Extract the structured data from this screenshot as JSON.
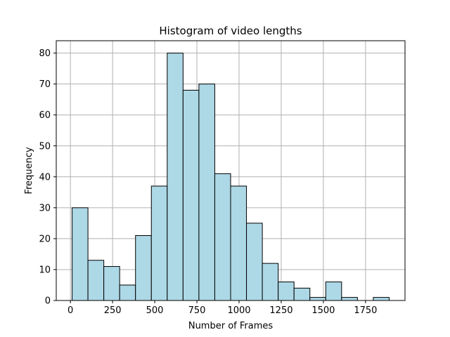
{
  "chart_data": {
    "type": "bar",
    "title": "Histogram of video lengths",
    "xlabel": "Number of Frames",
    "ylabel": "Frequency",
    "bins": [
      {
        "start": 10,
        "end": 104,
        "count": 30
      },
      {
        "start": 104,
        "end": 198,
        "count": 13
      },
      {
        "start": 198,
        "end": 292,
        "count": 11
      },
      {
        "start": 292,
        "end": 386,
        "count": 5
      },
      {
        "start": 386,
        "end": 480,
        "count": 21
      },
      {
        "start": 480,
        "end": 574,
        "count": 37
      },
      {
        "start": 574,
        "end": 668,
        "count": 80
      },
      {
        "start": 668,
        "end": 762,
        "count": 68
      },
      {
        "start": 762,
        "end": 856,
        "count": 70
      },
      {
        "start": 856,
        "end": 950,
        "count": 41
      },
      {
        "start": 950,
        "end": 1044,
        "count": 37
      },
      {
        "start": 1044,
        "end": 1138,
        "count": 25
      },
      {
        "start": 1138,
        "end": 1232,
        "count": 12
      },
      {
        "start": 1232,
        "end": 1326,
        "count": 6
      },
      {
        "start": 1326,
        "end": 1420,
        "count": 4
      },
      {
        "start": 1420,
        "end": 1514,
        "count": 1
      },
      {
        "start": 1514,
        "end": 1608,
        "count": 6
      },
      {
        "start": 1608,
        "end": 1702,
        "count": 1
      },
      {
        "start": 1702,
        "end": 1796,
        "count": 0
      },
      {
        "start": 1796,
        "end": 1890,
        "count": 1
      }
    ],
    "xlim": [
      -84,
      1984
    ],
    "ylim": [
      0,
      84
    ],
    "xticks": [
      0,
      250,
      500,
      750,
      1000,
      1250,
      1500,
      1750
    ],
    "yticks": [
      0,
      10,
      20,
      30,
      40,
      50,
      60,
      70,
      80
    ],
    "grid": true,
    "bar_color": "#add8e6",
    "edge_color": "#000000",
    "grid_color": "#b0b0b0"
  }
}
